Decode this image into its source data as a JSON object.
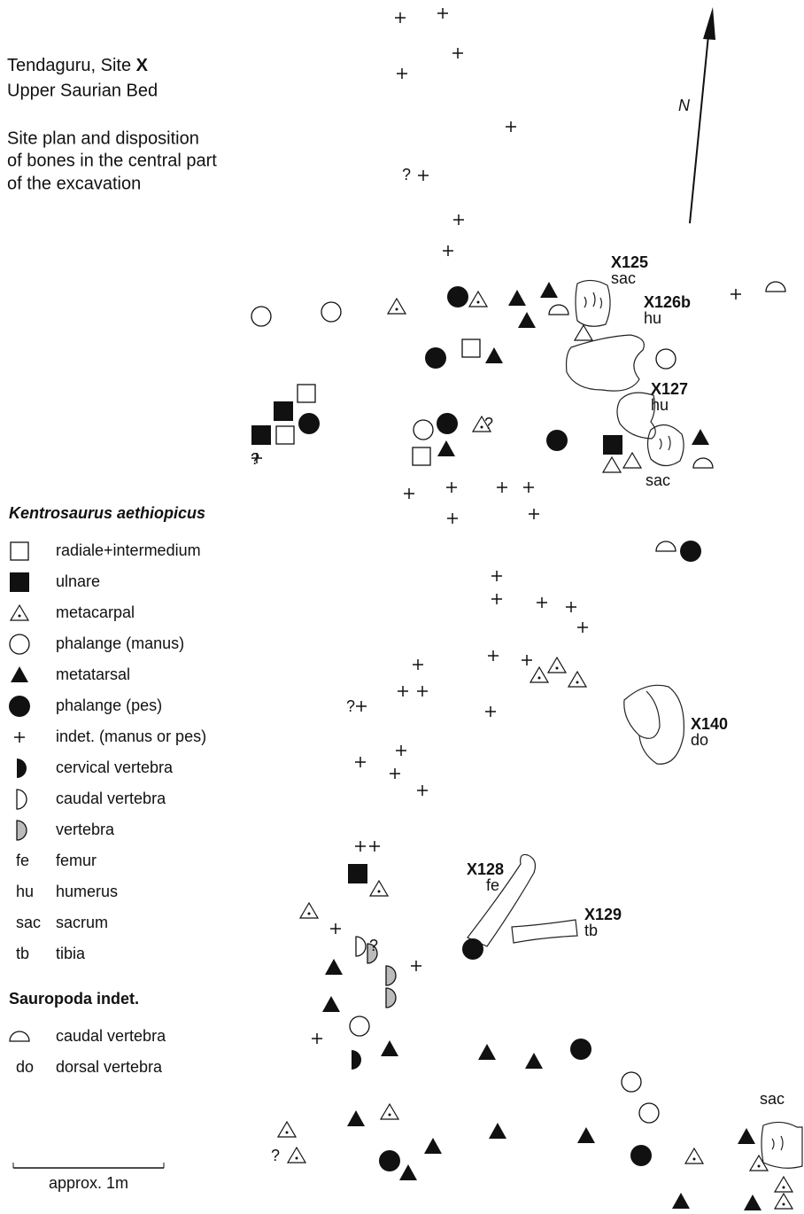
{
  "header": {
    "title": "Tendaguru, Site",
    "title_site": "X",
    "subtitle": "Upper Saurian Bed",
    "description": [
      "Site plan and disposition",
      "of bones in the central part",
      "of the excavation"
    ]
  },
  "north_label": "N",
  "legend": [
    {
      "title": "Kentrosaurus aethiopicus",
      "items": [
        {
          "label": "radiale+intermedium"
        },
        {
          "label": "ulnare"
        },
        {
          "label": "metacarpal"
        },
        {
          "label": "phalange (manus)"
        },
        {
          "label": "metatarsal"
        },
        {
          "label": "phalange (pes)"
        },
        {
          "label": "indet. (manus or pes)"
        },
        {
          "label": "cervical vertebra"
        },
        {
          "label": "caudal vertebra"
        },
        {
          "label": "vertebra"
        },
        {
          "abbr": "fe",
          "label": "femur"
        },
        {
          "abbr": "hu",
          "label": "humerus"
        },
        {
          "abbr": "sac",
          "label": "sacrum"
        },
        {
          "abbr": "tb",
          "label": "tibia"
        }
      ]
    },
    {
      "title": "Sauropoda indet.",
      "items": [
        {
          "label": "caudal vertebra"
        },
        {
          "abbr": "do",
          "label": "dorsal vertebra"
        }
      ]
    }
  ],
  "specimens": [
    {
      "id": "X125",
      "part": "sac"
    },
    {
      "id": "X126b",
      "part": "hu"
    },
    {
      "id": "X127",
      "part": "hu"
    },
    {
      "part": "sac"
    },
    {
      "id": "X140",
      "part": "do"
    },
    {
      "id": "X128",
      "part": "fe"
    },
    {
      "id": "X129",
      "part": "tb"
    },
    {
      "part": "sac"
    }
  ],
  "question_marks": [
    "?",
    "?",
    "?",
    "?",
    "?",
    "?"
  ],
  "scale_label": "approx. 1m"
}
